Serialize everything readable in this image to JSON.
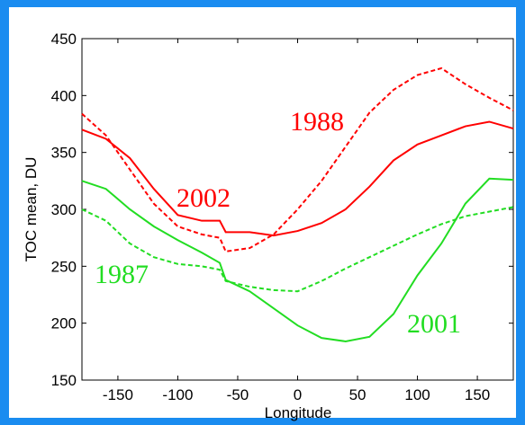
{
  "chart_data": {
    "type": "line",
    "x_label": "Longitude",
    "y_label": "TOC mean, DU",
    "x": [
      -180,
      -160,
      -140,
      -120,
      -100,
      -80,
      -65,
      -60,
      -40,
      -20,
      0,
      20,
      40,
      60,
      80,
      100,
      120,
      140,
      160,
      180
    ],
    "series": [
      {
        "name": "2002",
        "color": "#ff0000",
        "dashed": false,
        "values": [
          370,
          362,
          345,
          318,
          295,
          290,
          290,
          280,
          280,
          277,
          281,
          288,
          300,
          320,
          343,
          357,
          365,
          373,
          377,
          371
        ]
      },
      {
        "name": "1988",
        "color": "#ff0000",
        "dashed": true,
        "values": [
          384,
          365,
          335,
          305,
          285,
          278,
          275,
          263,
          266,
          278,
          300,
          325,
          355,
          385,
          405,
          418,
          424,
          410,
          398,
          387
        ]
      },
      {
        "name": "1987",
        "color": "#22dd22",
        "dashed": true,
        "values": [
          300,
          290,
          270,
          258,
          252,
          250,
          247,
          237,
          232,
          229,
          228,
          237,
          248,
          258,
          268,
          278,
          287,
          294,
          298,
          302
        ]
      },
      {
        "name": "2001",
        "color": "#22dd22",
        "dashed": false,
        "values": [
          325,
          318,
          300,
          285,
          273,
          262,
          253,
          238,
          228,
          213,
          198,
          187,
          184,
          188,
          208,
          242,
          270,
          305,
          327,
          326
        ]
      }
    ],
    "xlim": [
      -180,
      180
    ],
    "ylim": [
      150,
      450
    ],
    "xticks": [
      -150,
      -100,
      -50,
      0,
      50,
      100,
      150
    ],
    "yticks": [
      150,
      200,
      250,
      300,
      350,
      400,
      450
    ],
    "grid": false
  }
}
